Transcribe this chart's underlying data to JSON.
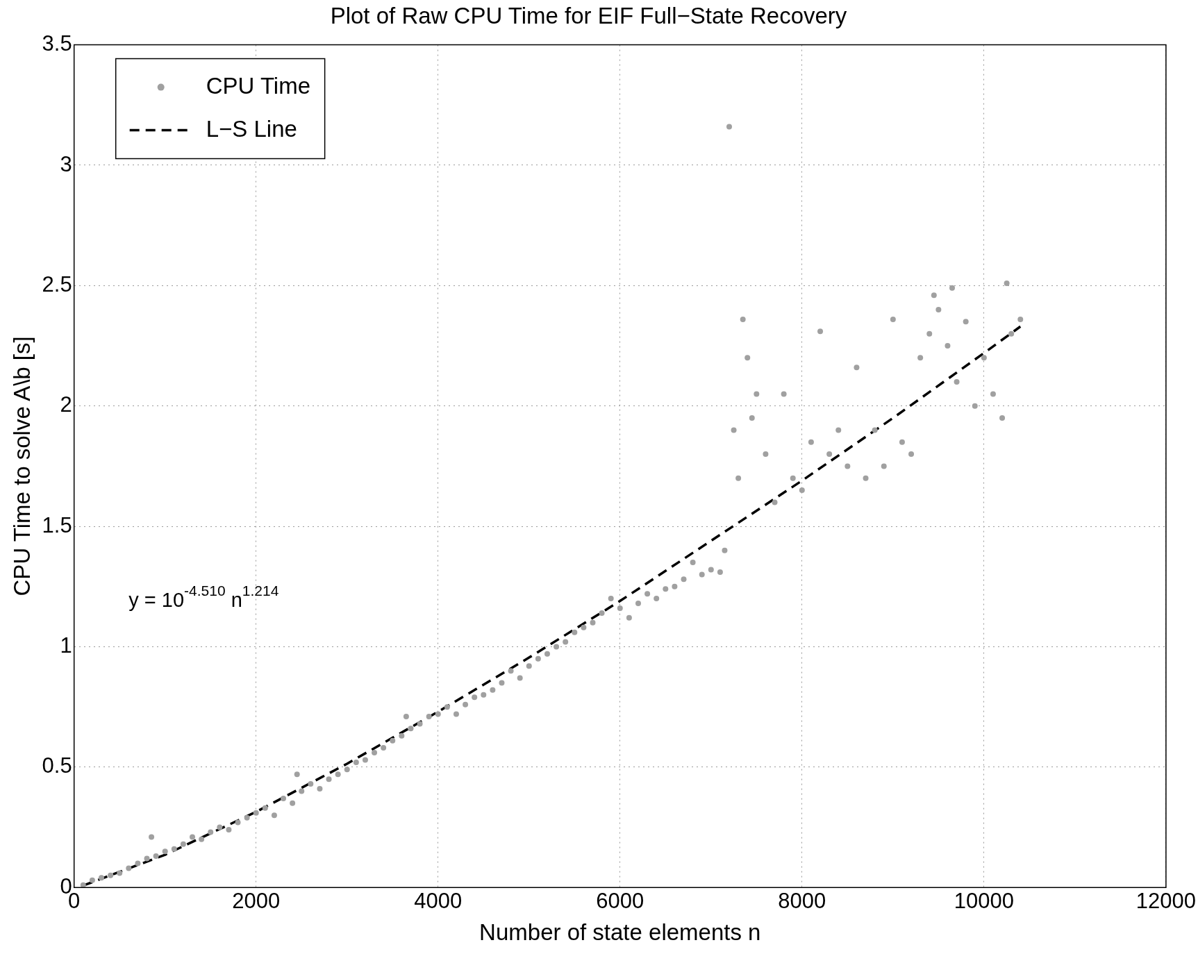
{
  "chart_data": {
    "type": "scatter",
    "title": "Plot of Raw CPU Time for EIF Full−State Recovery",
    "xlabel": "Number of state elements n",
    "ylabel": "CPU Time to solve A\\b [s]",
    "xlim": [
      0,
      12000
    ],
    "xticks": [
      0,
      2000,
      4000,
      6000,
      8000,
      10000,
      12000
    ],
    "ylim": [
      0,
      3.5
    ],
    "yticks": [
      0,
      0.5,
      1,
      1.5,
      2,
      2.5,
      3,
      3.5
    ],
    "grid": true,
    "legend": "top left",
    "annotations": [
      "y = 10$^{-4.510}$ n$^{1.214}$"
    ],
    "series": [
      {
        "name": "CPU Time",
        "color": "#a0a0a0",
        "marker": "circle",
        "x": [
          100,
          200,
          300,
          400,
          500,
          600,
          700,
          800,
          850,
          900,
          1000,
          1100,
          1200,
          1300,
          1400,
          1500,
          1600,
          1700,
          1800,
          1900,
          2000,
          2100,
          2200,
          2300,
          2400,
          2450,
          2500,
          2600,
          2700,
          2800,
          2900,
          3000,
          3100,
          3200,
          3300,
          3400,
          3500,
          3600,
          3650,
          3700,
          3800,
          3900,
          4000,
          4100,
          4200,
          4300,
          4400,
          4500,
          4600,
          4700,
          4800,
          4900,
          5000,
          5100,
          5200,
          5300,
          5400,
          5500,
          5600,
          5700,
          5800,
          5900,
          6000,
          6100,
          6200,
          6300,
          6400,
          6500,
          6600,
          6700,
          6800,
          6900,
          7000,
          7100,
          7150,
          7200,
          7250,
          7300,
          7350,
          7400,
          7450,
          7500,
          7600,
          7700,
          7800,
          7900,
          8000,
          8100,
          8200,
          8300,
          8400,
          8500,
          8600,
          8700,
          8800,
          8900,
          9000,
          9100,
          9200,
          9300,
          9400,
          9450,
          9500,
          9600,
          9650,
          9700,
          9800,
          9900,
          10000,
          10100,
          10200,
          10250,
          10300,
          10400
        ],
        "values": [
          0.01,
          0.03,
          0.04,
          0.05,
          0.06,
          0.08,
          0.1,
          0.12,
          0.21,
          0.13,
          0.15,
          0.16,
          0.18,
          0.21,
          0.2,
          0.23,
          0.25,
          0.24,
          0.27,
          0.29,
          0.31,
          0.33,
          0.3,
          0.37,
          0.35,
          0.47,
          0.4,
          0.43,
          0.41,
          0.45,
          0.47,
          0.49,
          0.52,
          0.53,
          0.56,
          0.58,
          0.61,
          0.63,
          0.71,
          0.66,
          0.68,
          0.71,
          0.72,
          0.75,
          0.72,
          0.76,
          0.79,
          0.8,
          0.82,
          0.85,
          0.9,
          0.87,
          0.92,
          0.95,
          0.97,
          1.0,
          1.02,
          1.06,
          1.08,
          1.1,
          1.14,
          1.2,
          1.16,
          1.12,
          1.18,
          1.22,
          1.2,
          1.24,
          1.25,
          1.28,
          1.35,
          1.3,
          1.32,
          1.31,
          1.4,
          3.16,
          1.9,
          1.7,
          2.36,
          2.2,
          1.95,
          2.05,
          1.8,
          1.6,
          2.05,
          1.7,
          1.65,
          1.85,
          2.31,
          1.8,
          1.9,
          1.75,
          2.16,
          1.7,
          1.9,
          1.75,
          2.36,
          1.85,
          1.8,
          2.2,
          2.3,
          2.46,
          2.4,
          2.25,
          2.49,
          2.1,
          2.35,
          2.0,
          2.2,
          2.05,
          1.95,
          2.51,
          2.3,
          2.36
        ]
      },
      {
        "name": "L−S Line",
        "type": "line",
        "color": "#000000",
        "line_style": "dashed",
        "marker": "none",
        "x": [
          100,
          1000,
          2000,
          3000,
          4000,
          5000,
          6000,
          7000,
          8000,
          9000,
          10000,
          10400
        ],
        "values": [
          0.008,
          0.136,
          0.314,
          0.514,
          0.73,
          0.955,
          1.19,
          1.44,
          1.69,
          1.95,
          2.22,
          2.33
        ]
      }
    ]
  }
}
